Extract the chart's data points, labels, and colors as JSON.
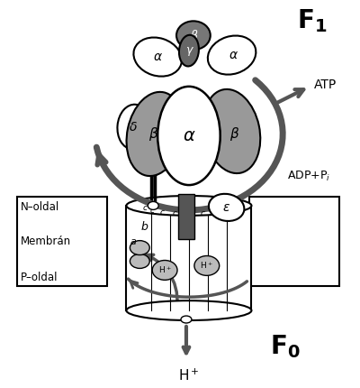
{
  "bg_color": "#ffffff",
  "dark_gray": "#555555",
  "mid_gray": "#999999",
  "light_gray": "#bbbbbb",
  "white": "#ffffff",
  "title_F1": "F$_1$",
  "title_F0": "F$_0$",
  "label_ATP": "ATP",
  "label_ADP": "ADP+P$_i$",
  "label_N": "N–oldal",
  "label_P": "P–oldal",
  "label_Membran": "Membrán",
  "label_Hplus": "H$^+$",
  "figsize": [
    4.0,
    4.3
  ],
  "dpi": 100
}
